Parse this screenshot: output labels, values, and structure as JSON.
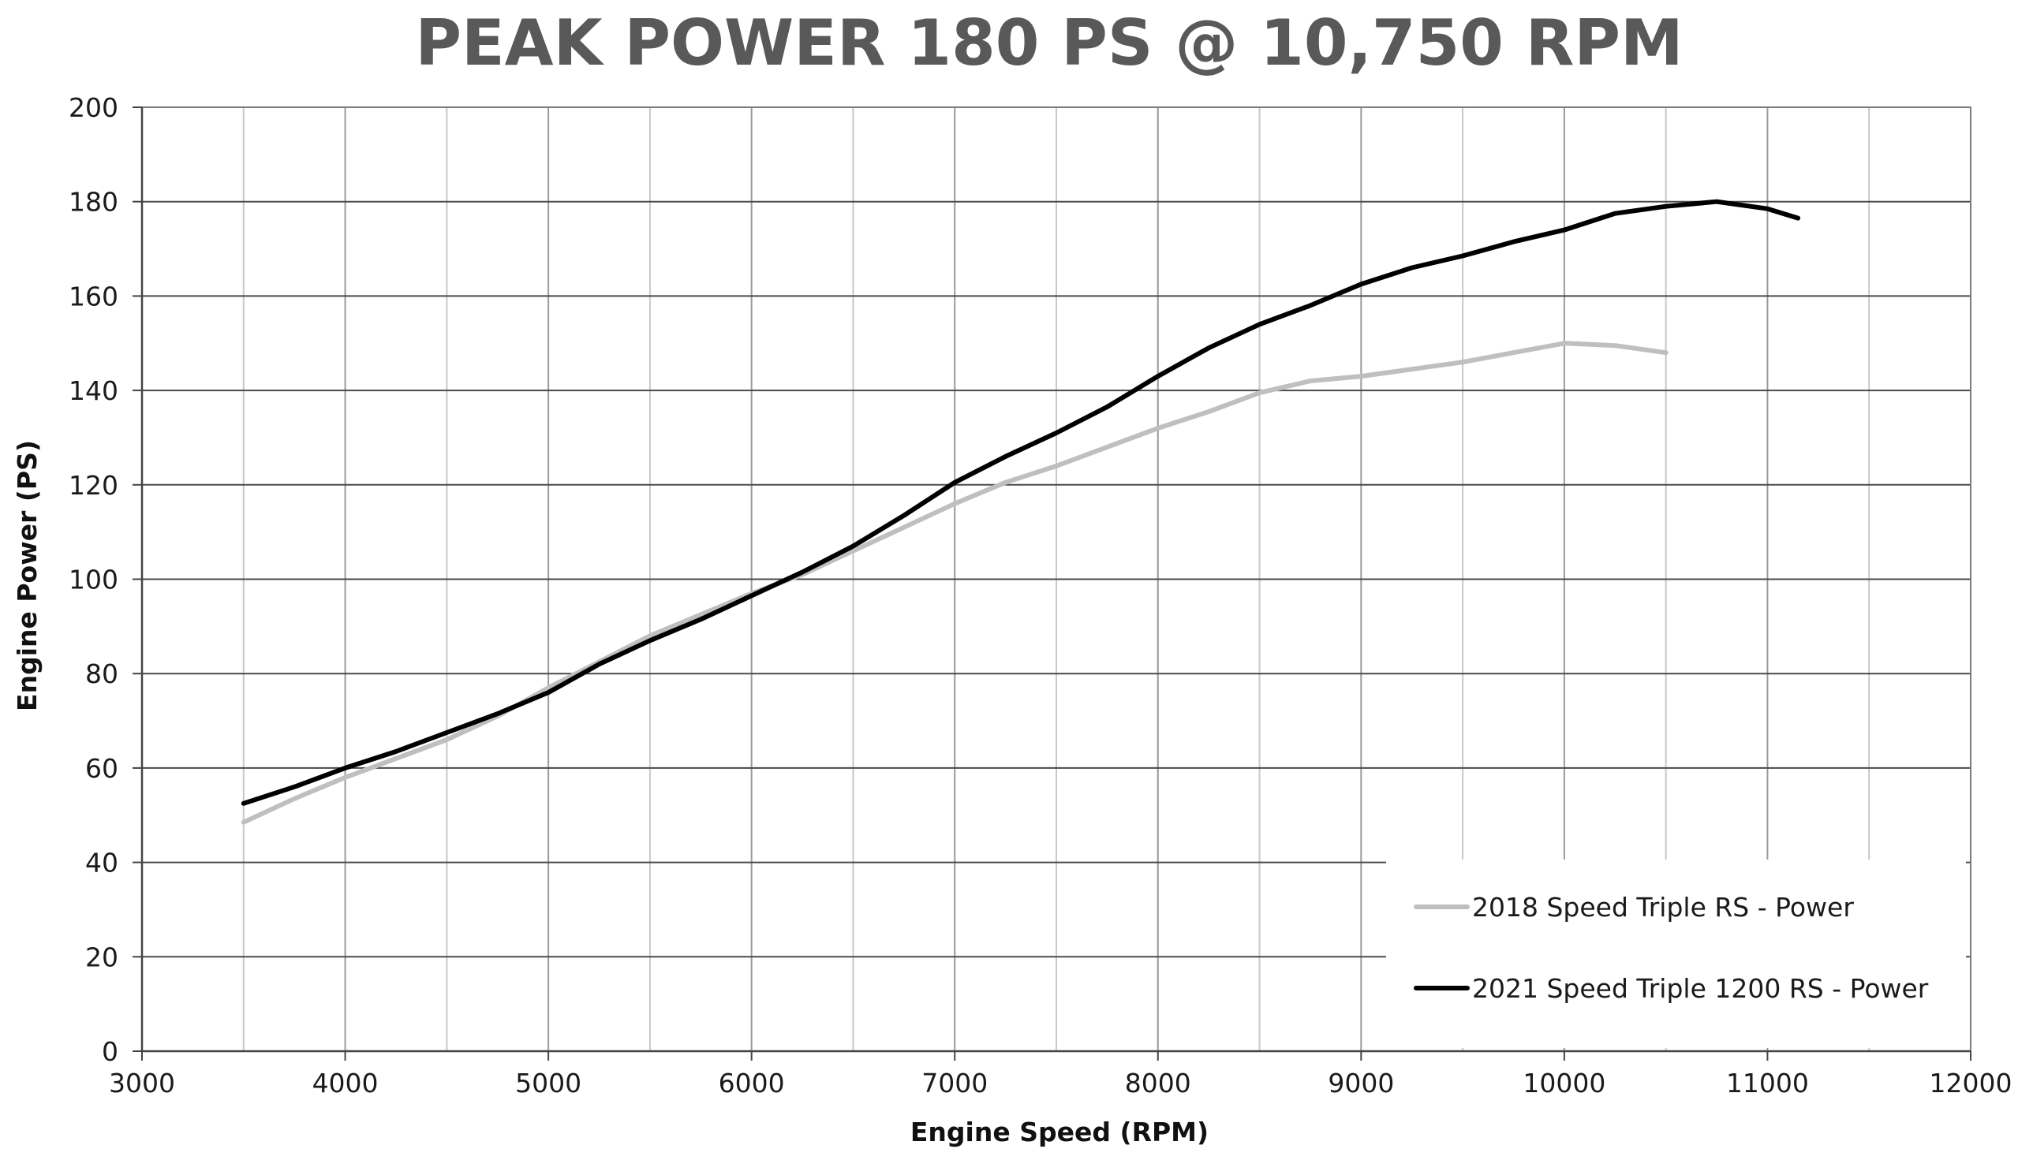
{
  "chart_data": {
    "type": "line",
    "title": "PEAK POWER 180 PS @ 10,750 RPM",
    "xlabel": "Engine Speed (RPM)",
    "ylabel": "Engine Power (PS)",
    "xlim": [
      3000,
      12000
    ],
    "ylim": [
      0,
      200
    ],
    "x_ticks": [
      3000,
      4000,
      5000,
      6000,
      7000,
      8000,
      9000,
      10000,
      11000,
      12000
    ],
    "x_minor_gridlines": [
      3500,
      4500,
      5500,
      6500,
      7500,
      8500,
      9500,
      10500,
      11500
    ],
    "y_ticks": [
      0,
      20,
      40,
      60,
      80,
      100,
      120,
      140,
      160,
      180,
      200
    ],
    "grid": true,
    "legend_position": "bottom-right",
    "series": [
      {
        "name": "2018 Speed Triple RS - Power",
        "color": "#bfbfbf",
        "points": [
          [
            3500,
            48.5
          ],
          [
            3750,
            53.5
          ],
          [
            4000,
            58
          ],
          [
            4250,
            62
          ],
          [
            4500,
            66
          ],
          [
            4750,
            71
          ],
          [
            5000,
            77
          ],
          [
            5250,
            82.5
          ],
          [
            5500,
            88
          ],
          [
            5750,
            92.5
          ],
          [
            6000,
            97
          ],
          [
            6250,
            101
          ],
          [
            6500,
            106
          ],
          [
            6750,
            111
          ],
          [
            7000,
            116
          ],
          [
            7250,
            120.5
          ],
          [
            7500,
            124
          ],
          [
            7750,
            128
          ],
          [
            8000,
            132
          ],
          [
            8250,
            135.5
          ],
          [
            8500,
            139.5
          ],
          [
            8750,
            142
          ],
          [
            9000,
            143
          ],
          [
            9250,
            144.5
          ],
          [
            9500,
            146
          ],
          [
            9750,
            148
          ],
          [
            10000,
            150
          ],
          [
            10250,
            149.5
          ],
          [
            10500,
            148
          ]
        ]
      },
      {
        "name": "2021 Speed Triple 1200 RS - Power",
        "color": "#000000",
        "points": [
          [
            3500,
            52.5
          ],
          [
            3750,
            56
          ],
          [
            4000,
            60
          ],
          [
            4250,
            63.5
          ],
          [
            4500,
            67.5
          ],
          [
            4750,
            71.5
          ],
          [
            5000,
            76
          ],
          [
            5250,
            82
          ],
          [
            5500,
            87
          ],
          [
            5750,
            91.5
          ],
          [
            6000,
            96.5
          ],
          [
            6250,
            101.5
          ],
          [
            6500,
            107
          ],
          [
            6750,
            113.5
          ],
          [
            7000,
            120.5
          ],
          [
            7250,
            126
          ],
          [
            7500,
            131
          ],
          [
            7750,
            136.5
          ],
          [
            8000,
            143
          ],
          [
            8250,
            149
          ],
          [
            8500,
            154
          ],
          [
            8750,
            158
          ],
          [
            9000,
            162.5
          ],
          [
            9250,
            166
          ],
          [
            9500,
            168.5
          ],
          [
            9750,
            171.5
          ],
          [
            10000,
            174
          ],
          [
            10250,
            177.5
          ],
          [
            10500,
            179
          ],
          [
            10750,
            180
          ],
          [
            11000,
            178.5
          ],
          [
            11150,
            176.5
          ]
        ]
      }
    ]
  }
}
